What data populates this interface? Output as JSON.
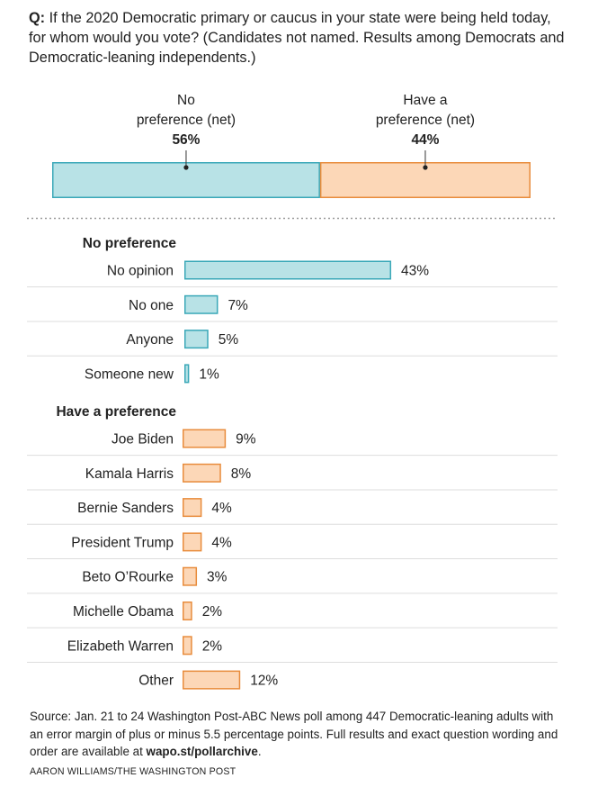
{
  "question": {
    "prefix": "Q:",
    "text": "If the 2020 Democratic primary or caucus in your state were being held today, for whom would you vote? (Candidates not named. Results among Democrats and Democratic-leaning independents.)"
  },
  "colors": {
    "no_pref_fill": "#b8e2e6",
    "no_pref_stroke": "#3aa8b8",
    "pref_fill": "#fcd7b7",
    "pref_stroke": "#e88c3c",
    "divider": "#dddddd",
    "dotted": "#999999"
  },
  "chart_data": {
    "type": "bar",
    "title": "If the 2020 Democratic primary or caucus in your state were being held today, for whom would you vote?",
    "unit": "%",
    "summary": [
      {
        "label_line1": "No",
        "label_line2": "preference (net)",
        "value": 56,
        "display": "56%",
        "group": "no_preference"
      },
      {
        "label_line1": "Have a",
        "label_line2": "preference (net)",
        "value": 44,
        "display": "44%",
        "group": "have_preference"
      }
    ],
    "groups": [
      {
        "key": "no_preference",
        "title": "No preference",
        "items": [
          {
            "label": "No opinion",
            "value": 43,
            "display": "43%"
          },
          {
            "label": "No one",
            "value": 7,
            "display": "7%"
          },
          {
            "label": "Anyone",
            "value": 5,
            "display": "5%"
          },
          {
            "label": "Someone new",
            "value": 1,
            "display": "1%"
          }
        ]
      },
      {
        "key": "have_preference",
        "title": "Have a preference",
        "items": [
          {
            "label": "Joe Biden",
            "value": 9,
            "display": "9%"
          },
          {
            "label": "Kamala Harris",
            "value": 8,
            "display": "8%"
          },
          {
            "label": "Bernie Sanders",
            "value": 4,
            "display": "4%"
          },
          {
            "label": "President Trump",
            "value": 4,
            "display": "4%"
          },
          {
            "label": "Beto O’Rourke",
            "value": 3,
            "display": "3%"
          },
          {
            "label": "Michelle Obama",
            "value": 2,
            "display": "2%"
          },
          {
            "label": "Elizabeth Warren",
            "value": 2,
            "display": "2%"
          },
          {
            "label": "Other",
            "value": 12,
            "display": "12%"
          }
        ]
      }
    ]
  },
  "source": {
    "text": "Source: Jan. 21 to 24 Washington Post-ABC News poll among 447 Democratic-leaning adults with an error margin of plus or minus 5.5 percentage points. Full results and exact question wording and order are available at ",
    "link": "wapo.st/pollarchive",
    "end": "."
  },
  "credit": "AARON WILLIAMS/THE WASHINGTON POST"
}
